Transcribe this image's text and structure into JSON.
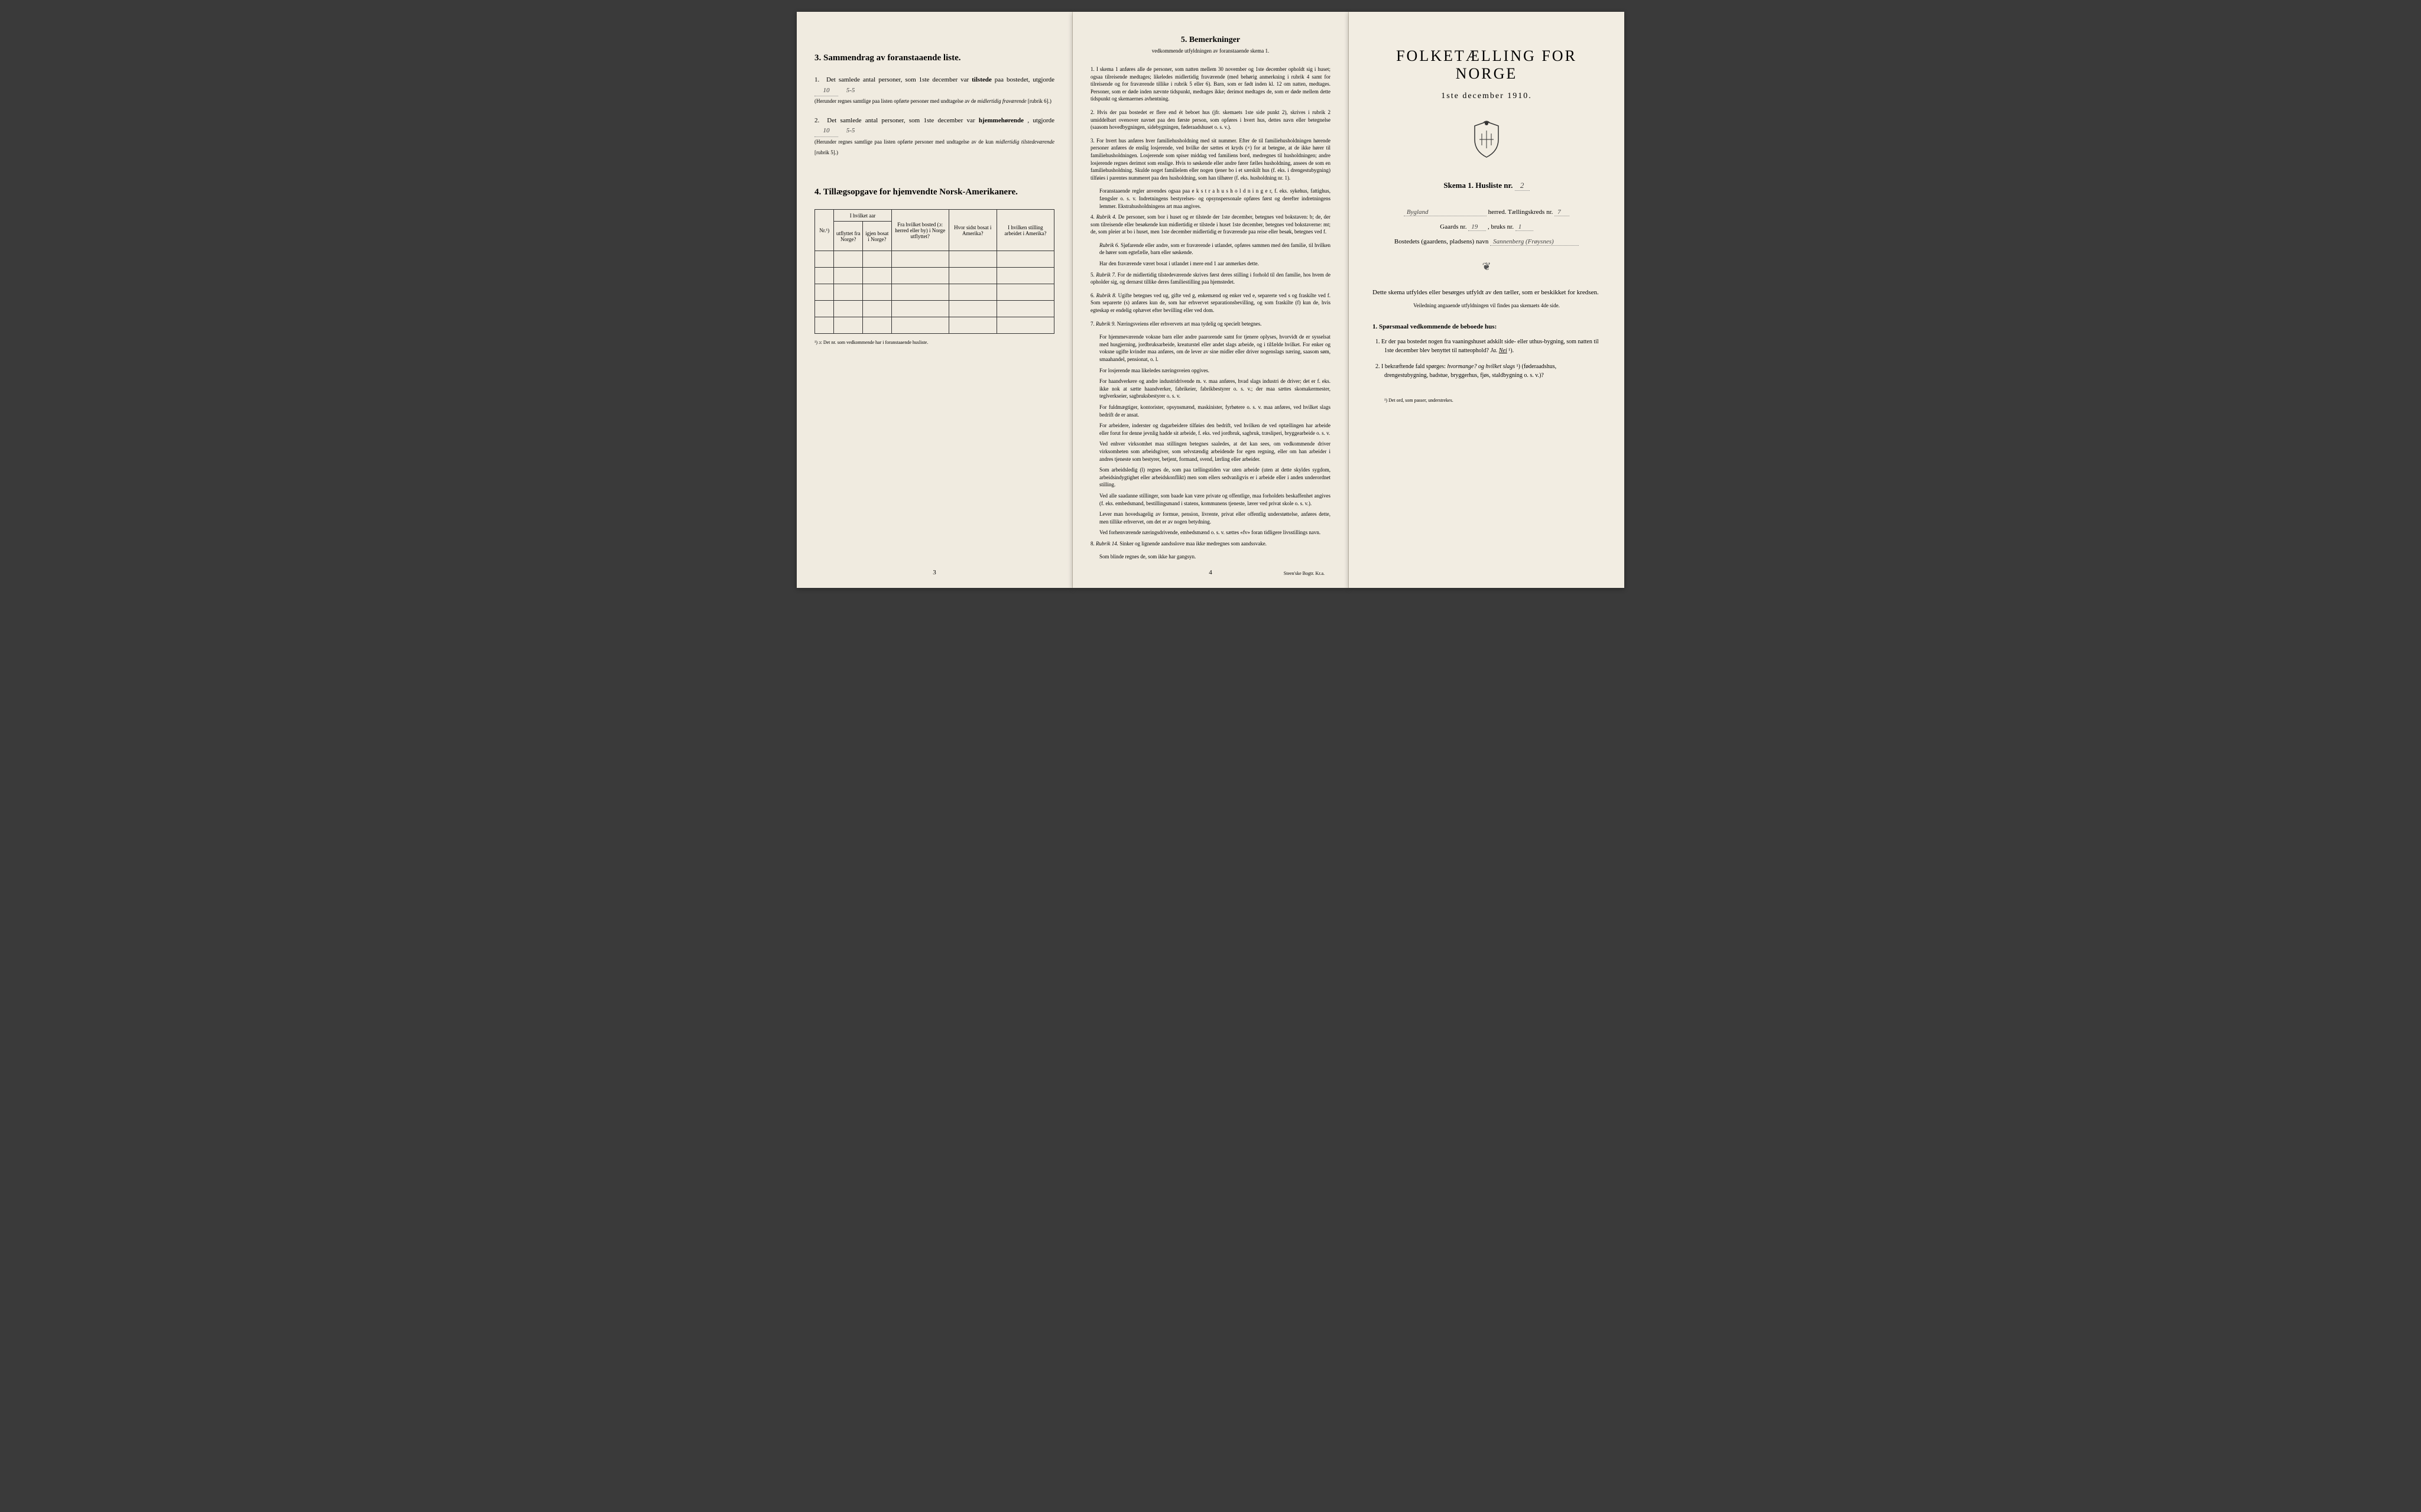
{
  "leftPage": {
    "section3": {
      "title": "3.  Sammendrag av foranstaaende liste.",
      "item1_prefix": "1.",
      "item1_text1": "Det samlede antal personer, som 1ste december var",
      "item1_bold": "tilstede",
      "item1_text2": "paa bostedet, utgjorde",
      "item1_value": "10",
      "item1_extra": "5-5",
      "item1_note": "(Herunder regnes samtlige paa listen opførte personer med undtagelse av de",
      "item1_note_italic": "midlertidig fraværende",
      "item1_note_end": "[rubrik 6].)",
      "item2_prefix": "2.",
      "item2_text1": "Det samlede antal personer, som 1ste december var",
      "item2_bold": "hjemmehørende",
      "item2_text2": ", utgjorde",
      "item2_value": "10",
      "item2_extra": "5-5",
      "item2_note": "(Herunder regnes samtlige paa listen opførte personer med undtagelse av de kun",
      "item2_note_italic": "midlertidig tilstedeværende",
      "item2_note_end": "[rubrik 5].)"
    },
    "section4": {
      "title": "4.  Tillægsopgave for hjemvendte Norsk-Amerikanere.",
      "headers": {
        "col1": "Nr.¹)",
        "col2_top": "I hvilket aar",
        "col2a": "utflyttet fra Norge?",
        "col2b": "igjen bosat i Norge?",
        "col3": "Fra hvilket bosted (ɔ: herred eller by) i Norge utflyttet?",
        "col4": "Hvor sidst bosat i Amerika?",
        "col5": "I hvilken stilling arbeidet i Amerika?"
      },
      "footnote": "¹) ɔ: Det nr. som vedkommende har i foranstaaende husliste."
    },
    "pageNum": "3"
  },
  "middlePage": {
    "title": "5.  Bemerkninger",
    "subtitle": "vedkommende utfyldningen av foranstaaende skema 1.",
    "items": [
      {
        "num": "1.",
        "text": "I skema 1 anføres alle de personer, som natten mellem 30 november og 1ste december opholdt sig i huset; ogsaa tilreisende medtages; likeledes midlertidig fraværende (med behørig anmerkning i rubrik 4 samt for tilreisende og for fraværende tillike i rubrik 5 eller 6). Barn, som er født inden kl. 12 om natten, medtages. Personer, som er døde inden nævnte tidspunkt, medtages ikke; derimot medtages de, som er døde mellem dette tidspunkt og skemaernes avhentning."
      },
      {
        "num": "2.",
        "text": "Hvis der paa bostedet er flere end ét beboet hus (jfr. skemaets 1ste side punkt 2), skrives i rubrik 2 umiddelbart ovenover navnet paa den første person, som opføres i hvert hus, dettes navn eller betegnelse (saasom hovedbygningen, sidebygningen, føderaadshuset o. s. v.)."
      },
      {
        "num": "3.",
        "text": "For hvert hus anføres hver familiehusholdning med sit nummer. Efter de til familiehusholdningen hørende personer anføres de enslig losjerende, ved hvilke der sættes et kryds (×) for at betegne, at de ikke hører til familiehusholdningen. Losjerende som spiser middag ved familiens bord, medregnes til husholdningen; andre losjerende regnes derimot som enslige. Hvis to søskende eller andre fører fælles husholdning, ansees de som en familiehusholdning. Skulde noget familielem eller nogen tjener bo i et særskilt hus (f. eks. i drengestubygning) tilføies i parentes nummeret paa den husholdning, som han tilhører (f. eks. husholdning nr. 1).",
        "extra": "Foranstaaende regler anvendes ogsaa paa e k s t r a h u s h o l d n i n g e r, f. eks. sykehus, fattighus, fængsler o. s. v. Indretningens bestyrelses- og opsynspersonale opføres først og derefter indretningens lemmer. Ekstrahusholdningens art maa angives."
      },
      {
        "num": "4.",
        "text": "Rubrik 4. De personer, som bor i huset og er tilstede der 1ste december, betegnes ved bokstaven: b; de, der som tilreisende eller besøkende kun midlertidig er tilstede i huset 1ste december, betegnes ved bokstaverne: mt; de, som pleier at bo i huset, men 1ste december midlertidig er fraværende paa reise eller besøk, betegnes ved f.",
        "sub1": "Rubrik 6. Sjøfarende eller andre, som er fraværende i utlandet, opføres sammen med den familie, til hvilken de hører som egtefælle, barn eller søskende.",
        "sub2": "Har den fraværende været bosat i utlandet i mere end 1 aar anmerkes dette."
      },
      {
        "num": "5.",
        "text": "Rubrik 7. For de midlertidig tilstedeværende skrives først deres stilling i forhold til den familie, hos hvem de opholder sig, og dernæst tillike deres familiestilling paa hjemstedet."
      },
      {
        "num": "6.",
        "text": "Rubrik 8. Ugifte betegnes ved ug, gifte ved g, enkemænd og enker ved e, separerte ved s og fraskilte ved f. Som separerte (s) anføres kun de, som har erhvervet separationsbevilling, og som fraskilte (f) kun de, hvis egteskap er endelig ophævet efter bevilling eller ved dom."
      },
      {
        "num": "7.",
        "text": "Rubrik 9. Næringsveiens eller erhvervets art maa tydelig og specielt betegnes.",
        "sub1": "For hjemmeværende voksne barn eller andre paarorende samt for tjenere oplyses, hvorvidt de er sysselsat med husgjerning, jordbruksarbeide, kreaturstel eller andet slags arbeide, og i tilfælde hvilket. For enker og voksne ugifte kvinder maa anføres, om de lever av sine midler eller driver nogenslags næring, saasom søm, smaahandel, pensionat, o. l.",
        "sub2": "For losjerende maa likeledes næringsveien opgives.",
        "sub3": "For haandverkere og andre industridrivende m. v. maa anføres, hvad slags industri de driver; det er f. eks. ikke nok at sætte haandverker, fabrikeier, fabrikbestyrer o. s. v.; der maa sættes skomakermester, teglverkseier, sagbruksbestyrer o. s. v.",
        "sub4": "For fuldmægtiger, kontorister, opsynsmænd, maskinister, fyrbøtere o. s. v. maa anføres, ved hvilket slags bedrift de er ansat.",
        "sub5": "For arbeidere, inderster og dagarbeidere tilføies den bedrift, ved hvilken de ved optællingen har arbeide eller forut for denne jevnlig hadde sit arbeide, f. eks. ved jordbruk, sagbruk, træsliperi, bryggearbeide o. s. v.",
        "sub6": "Ved enhver virksomhet maa stillingen betegnes saaledes, at det kan sees, om vedkommende driver virksomheten som arbeidsgiver, som selvstændig arbeidende for egen regning, eller om han arbeider i andres tjeneste som bestyrer, betjent, formand, svend, lærling eller arbeider.",
        "sub7": "Som arbeidsledig (l) regnes de, som paa tællingstiden var uten arbeide (uten at dette skyldes sygdom, arbeidsindygtighet eller arbeidskonflikt) men som ellers sedvanligvis er i arbeide eller i anden underordnet stilling.",
        "sub8": "Ved alle saadanne stillinger, som baade kan være private og offentlige, maa forholdets beskaffenhet angives (f. eks. embedsmand, bestillingsmand i statens, kommunens tjeneste, lærer ved privat skole o. s. v.).",
        "sub9": "Lever man hovedsagelig av formue, pension, livrente, privat eller offentlig understøttelse, anføres dette, men tillike erhvervet, om det er av nogen betydning.",
        "sub10": "Ved forhenværende næringsdrivende, embedsmænd o. s. v. sættes «fv» foran tidligere livsstillings navn."
      },
      {
        "num": "8.",
        "text": "Rubrik 14. Sinker og lignende aandsslove maa ikke medregnes som aandssvake.",
        "sub1": "Som blinde regnes de, som ikke har gangsyn."
      }
    ],
    "pageNum": "4",
    "printer": "Steen'ske Bogtr. Kr.a."
  },
  "rightPage": {
    "mainTitle": "FOLKETÆLLING FOR NORGE",
    "mainDate": "1ste december 1910.",
    "schemaText": "Skema 1.  Husliste nr.",
    "schemaValue": "2",
    "line1_field": "Bygland",
    "line1_label": "herred.  Tællingskreds nr.",
    "line1_value": "7",
    "line2_label1": "Gaards nr.",
    "line2_value1": "19",
    "line2_label2": ", bruks nr.",
    "line2_value2": "1",
    "line3_label": "Bostedets (gaardens, pladsens) navn",
    "line3_value": "Sannenberg (Frøysnes)",
    "instruction1": "Dette skema utfyldes eller besørges utfyldt av den tæller, som er beskikket for kredsen.",
    "instruction2": "Veiledning angaaende utfyldningen vil findes paa skemaets 4de side.",
    "questionHeader": "1. Spørsmaal vedkommende de beboede hus:",
    "q1_num": "1.",
    "q1_text": "Er der paa bostedet nogen fra vaaningshuset adskilt side- eller uthus-bygning, som natten til 1ste december blev benyttet til natteophold?",
    "q1_ja": "Ja.",
    "q1_nei": "Nei",
    "q1_sup": "¹).",
    "q2_num": "2.",
    "q2_text": "I bekræftende fald spørges:",
    "q2_italic1": "hvormange?",
    "q2_text2": "og hvilket slags",
    "q2_sup": "¹)",
    "q2_text3": "(føderaadshus, drengestubygning, badstue, bryggerhus, fjøs, staldbygning o. s. v.)?",
    "footnote": "¹) Det ord, som passer, understrekes."
  }
}
